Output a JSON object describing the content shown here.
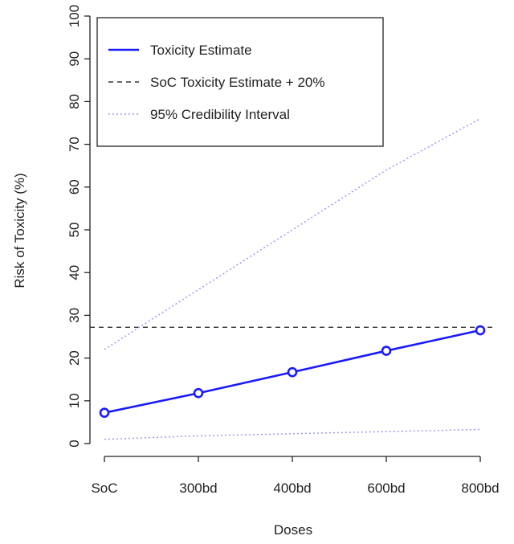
{
  "chart_data": {
    "type": "line",
    "title": "",
    "xlabel": "Doses",
    "ylabel": "Risk of Toxicity (%)",
    "categories": [
      "SoC",
      "300bd",
      "400bd",
      "600bd",
      "800bd"
    ],
    "ylim": [
      0,
      100
    ],
    "yticks": [
      0,
      10,
      20,
      30,
      40,
      50,
      60,
      70,
      80,
      90,
      100
    ],
    "grid": false,
    "legend_position": "top-left",
    "series": [
      {
        "name": "Toxicity Estimate",
        "style": "solid",
        "markers": true,
        "color": "#1a1aff",
        "values": [
          7.2,
          11.8,
          16.7,
          21.7,
          26.5
        ]
      },
      {
        "name": "95% Credibility Interval",
        "style": "dotted",
        "color": "#9a9af5",
        "values": [
          22,
          36,
          50,
          64,
          76
        ],
        "role": "upper bound"
      },
      {
        "name": "95% Credibility Interval",
        "style": "dotted",
        "color": "#9a9af5",
        "values": [
          1,
          1.8,
          2.3,
          2.8,
          3.3
        ],
        "role": "lower bound"
      }
    ],
    "reference_lines": [
      {
        "name": "SoC Toxicity Estimate + 20%",
        "style": "dashed",
        "color": "#333333",
        "y": 27.2
      }
    ],
    "legend": [
      {
        "label": "Toxicity Estimate",
        "style": "solid",
        "color": "#1a1aff"
      },
      {
        "label": "SoC Toxicity Estimate + 20%",
        "style": "dashed",
        "color": "#333333"
      },
      {
        "label": "95% Credibility Interval",
        "style": "dotted",
        "color": "#9a9af5"
      }
    ]
  }
}
